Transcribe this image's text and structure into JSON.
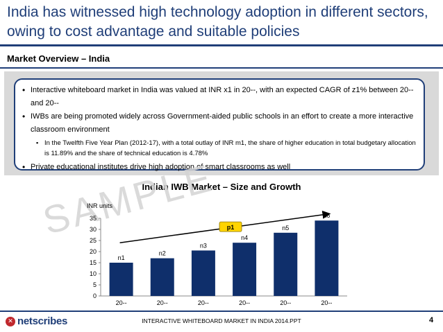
{
  "slide": {
    "title": "India has witnessed high technology adoption in different sectors, owing to cost advantage and suitable policies",
    "section_heading": "Market Overview – India",
    "bullets": [
      "Interactive whiteboard market in India was valued at INR x1 in 20--, with an expected CAGR of z1% between 20-- and 20--",
      "IWBs are being promoted widely across Government-aided public schools in an effort to create a more interactive classroom environment",
      "Private educational institutes drive high adoption of smart classrooms as well"
    ],
    "sub_bullet": "In the Twelfth Five Year Plan (2012-17), with a total outlay of INR m1,  the share of higher education in total budgetary allocation is 11.89% and the share of technical education is 4.78%",
    "watermark": "SAMPLE",
    "footer_text": "INTERACTIVE WHITEBOARD MARKET IN INDIA 2014.PPT",
    "page_number": "4",
    "logo_text": "netscribes",
    "colors": {
      "accent": "#1f3e78",
      "bar": "#0f2f6b",
      "callout": "#ffd400",
      "logo_red": "#c0282d"
    }
  },
  "chart_data": {
    "type": "bar",
    "title": "Indian IWB Market – Size and Growth",
    "ylabel": "INR units",
    "xlabel": "",
    "categories": [
      "20--",
      "20--",
      "20--",
      "20--",
      "20--",
      "20--"
    ],
    "values": [
      15,
      17,
      20.5,
      24,
      28.5,
      34
    ],
    "data_labels": [
      "n1",
      "n2",
      "n3",
      "n4",
      "n5",
      "n6"
    ],
    "ylim": [
      0,
      35
    ],
    "yticks": [
      0,
      5,
      10,
      15,
      20,
      25,
      30,
      35
    ],
    "growth_callout": "p1",
    "grid": false,
    "legend": "none"
  }
}
